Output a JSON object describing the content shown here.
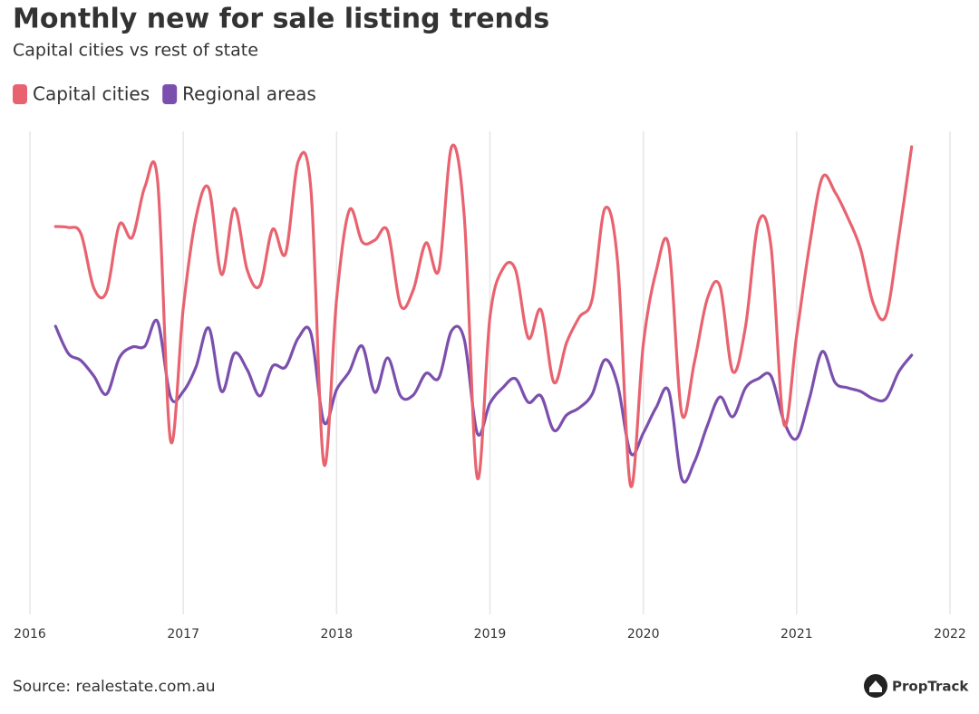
{
  "chart_data": {
    "type": "line",
    "title": "Monthly new for sale listing trends",
    "subtitle": "Capital cities vs rest of state",
    "source": "Source: realestate.com.au",
    "brand": "PropTrack",
    "x": [
      2016.167,
      2016.25,
      2016.333,
      2016.417,
      2016.5,
      2016.583,
      2016.667,
      2016.75,
      2016.833,
      2016.917,
      2017,
      2017.083,
      2017.167,
      2017.25,
      2017.333,
      2017.417,
      2017.5,
      2017.583,
      2017.667,
      2017.75,
      2017.833,
      2017.917,
      2018,
      2018.083,
      2018.167,
      2018.25,
      2018.333,
      2018.417,
      2018.5,
      2018.583,
      2018.667,
      2018.75,
      2018.833,
      2018.917,
      2019,
      2019.083,
      2019.167,
      2019.25,
      2019.333,
      2019.417,
      2019.5,
      2019.583,
      2019.667,
      2019.75,
      2019.833,
      2019.917,
      2020,
      2020.083,
      2020.167,
      2020.25,
      2020.333,
      2020.417,
      2020.5,
      2020.583,
      2020.667,
      2020.75,
      2020.833,
      2020.917,
      2021,
      2021.083,
      2021.167,
      2021.25,
      2021.333,
      2021.417,
      2021.5,
      2021.583,
      2021.667,
      2021.75
    ],
    "series": [
      {
        "name": "Capital cities",
        "color": "#e8636f",
        "values": [
          420,
          419,
          412,
          352,
          348,
          422,
          408,
          464,
          470,
          184,
          330,
          430,
          462,
          367,
          440,
          372,
          355,
          417,
          390,
          492,
          460,
          158,
          340,
          438,
          403,
          405,
          415,
          333,
          350,
          402,
          372,
          508,
          430,
          143,
          320,
          373,
          372,
          297,
          328,
          248,
          292,
          320,
          340,
          440,
          380,
          134,
          290,
          370,
          398,
          214,
          270,
          340,
          354,
          260,
          310,
          424,
          398,
          202,
          300,
          398,
          474,
          458,
          430,
          395,
          335,
          322,
          410,
          508
        ]
      },
      {
        "name": "Regional areas",
        "color": "#7b4fad",
        "values": [
          310,
          280,
          272,
          255,
          235,
          275,
          287,
          288,
          315,
          232,
          238,
          265,
          308,
          238,
          280,
          262,
          233,
          266,
          265,
          297,
          302,
          204,
          240,
          260,
          288,
          237,
          275,
          233,
          234,
          258,
          253,
          305,
          295,
          192,
          225,
          242,
          252,
          226,
          233,
          195,
          212,
          220,
          235,
          273,
          245,
          170,
          192,
          220,
          238,
          142,
          160,
          200,
          232,
          210,
          242,
          252,
          255,
          205,
          186,
          230,
          282,
          248,
          242,
          238,
          230,
          230,
          260,
          278
        ]
      }
    ],
    "xlim": [
      2016,
      2022
    ],
    "xticks": [
      2016,
      2017,
      2018,
      2019,
      2020,
      2021,
      2022
    ],
    "ylim": [
      0,
      525
    ],
    "grid": true
  }
}
